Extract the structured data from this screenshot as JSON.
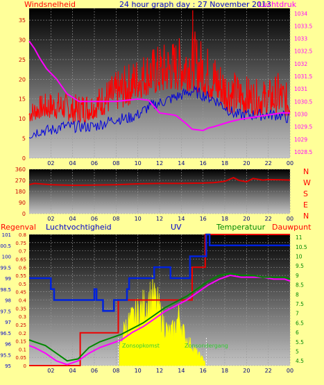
{
  "header": {
    "left_label": "Windsnelheid",
    "center_title": "24 hour graph day : 27 November 2013",
    "right_label": "Luchtdruk"
  },
  "direction_letters": [
    "N",
    "W",
    "S",
    "E",
    "N"
  ],
  "bottom_header": {
    "rain": "Regenval",
    "humidity": "Luchtvochtigheid",
    "uv": "UV",
    "temperature": "Temperatuur",
    "dewpoint": "Dauwpunt"
  },
  "annotations": {
    "sunrise": "Zonsopkomst",
    "sunset": "Zonsondergang"
  },
  "colors": {
    "background": "#ffff99",
    "wind_gust": "#ff0000",
    "wind_avg": "#0000dd",
    "pressure": "#ff00ff",
    "direction": "#dd0000",
    "rain": "#ee0000",
    "humidity": "#0022dd",
    "uv": "#ffff00",
    "temperature": "#008800",
    "dewpoint": "#ff00ff"
  },
  "chart_data": [
    {
      "type": "line",
      "title": "24 hour graph day : 27 November 2013",
      "x_ticks": [
        "02",
        "04",
        "06",
        "08",
        "10",
        "12",
        "14",
        "16",
        "18",
        "20",
        "22",
        "00"
      ],
      "y_left": {
        "label": "Windsnelheid",
        "ticks": [
          0,
          5,
          10,
          15,
          20,
          25,
          30,
          35
        ],
        "range": [
          0,
          38
        ]
      },
      "y_right": {
        "label": "Luchtdruk",
        "ticks": [
          1028.5,
          1029,
          1029.5,
          1030,
          1030.5,
          1031,
          1031.5,
          1032,
          1032.5,
          1033,
          1033.5,
          1034
        ],
        "range": [
          1028.25,
          1034.2
        ]
      },
      "series": [
        {
          "name": "Windsnelheid",
          "x": [
            0,
            1,
            2,
            3,
            4,
            5,
            6,
            7,
            8,
            9,
            10,
            11,
            12,
            13,
            14,
            15,
            16,
            17,
            18,
            19,
            20,
            21,
            22,
            23,
            24
          ],
          "gust_range": [
            [
              9,
              14
            ],
            [
              10,
              16
            ],
            [
              10,
              17
            ],
            [
              10,
              17
            ],
            [
              9,
              16
            ],
            [
              9,
              17
            ],
            [
              10,
              17
            ],
            [
              11,
              20
            ],
            [
              12,
              22
            ],
            [
              13,
              24
            ],
            [
              15,
              26
            ],
            [
              16,
              28
            ],
            [
              16,
              29
            ],
            [
              17,
              30
            ],
            [
              17,
              31
            ],
            [
              17,
              33
            ],
            [
              16,
              30
            ],
            [
              14,
              27
            ],
            [
              12,
              24
            ],
            [
              11,
              22
            ],
            [
              11,
              21
            ],
            [
              11,
              20
            ],
            [
              11,
              20
            ],
            [
              11,
              22
            ],
            [
              10,
              18
            ]
          ],
          "average": [
            6,
            7,
            7,
            8,
            8,
            8,
            8,
            9,
            10,
            10,
            11,
            13,
            14,
            15,
            16,
            17,
            16,
            15,
            13,
            11,
            11,
            11,
            11,
            11,
            10
          ]
        },
        {
          "name": "Luchtdruk",
          "x": [
            0,
            0.5,
            1,
            1.6,
            2.5,
            3.5,
            4.6,
            6,
            8,
            10,
            11,
            11.5,
            12,
            13.5,
            14.5,
            15,
            16,
            16.5,
            17,
            18.5,
            19.5,
            21,
            22.5,
            23.2,
            24
          ],
          "values": [
            1032.9,
            1032.6,
            1032.2,
            1031.8,
            1031.4,
            1030.8,
            1030.5,
            1030.5,
            1030.5,
            1030.6,
            1030.55,
            1030.3,
            1030.05,
            1029.95,
            1029.6,
            1029.4,
            1029.35,
            1029.45,
            1029.5,
            1029.7,
            1029.8,
            1029.9,
            1030.0,
            1030.05,
            1030.05
          ]
        }
      ]
    },
    {
      "type": "line",
      "title": "",
      "x_ticks": [
        "02",
        "04",
        "06",
        "08",
        "10",
        "12",
        "14",
        "16",
        "18",
        "20",
        "22",
        "00"
      ],
      "y_left": {
        "label": "",
        "ticks": [
          0,
          90,
          180,
          270,
          360
        ],
        "range": [
          0,
          360
        ]
      },
      "right_labels": [
        "N",
        "W",
        "S",
        "E",
        "N"
      ],
      "series": [
        {
          "name": "",
          "x": [
            0,
            0.5,
            2,
            4,
            6,
            8,
            10,
            12,
            14,
            16,
            17,
            18,
            18.8,
            19.3,
            20,
            20.6,
            21.5,
            22,
            23,
            24
          ],
          "values": [
            235,
            245,
            235,
            230,
            232,
            235,
            242,
            245,
            245,
            248,
            252,
            262,
            292,
            270,
            258,
            285,
            272,
            276,
            275,
            272
          ]
        }
      ]
    },
    {
      "type": "line",
      "title": "",
      "x_ticks": [
        "02",
        "04",
        "06",
        "08",
        "10",
        "12",
        "14",
        "16",
        "18",
        "20",
        "22",
        "00"
      ],
      "y_left_rain": {
        "label": "Regenval",
        "ticks": [
          0,
          0.05,
          0.1,
          0.15,
          0.2,
          0.25,
          0.3,
          0.35,
          0.4,
          0.45,
          0.5,
          0.55,
          0.6,
          0.65,
          0.7,
          0.75,
          0.8
        ],
        "range": [
          0,
          0.8
        ]
      },
      "y_left_humidity": {
        "label": "Luchtvochtigheid",
        "ticks": [
          95,
          95.5,
          96,
          96.5,
          97,
          97.5,
          98,
          98.5,
          99,
          99.5,
          100,
          100.5,
          101
        ],
        "range": [
          95,
          101
        ]
      },
      "y_right_temp": {
        "label": "Temperatuur",
        "ticks": [
          4.5,
          5,
          5.5,
          6,
          6.5,
          7,
          7.5,
          8,
          8.5,
          9,
          9.5,
          10,
          10.5,
          11
        ],
        "range": [
          4.25,
          11.15
        ]
      },
      "series": [
        {
          "name": "Regenval",
          "step_points": [
            [
              0,
              0
            ],
            [
              4.7,
              0
            ],
            [
              4.7,
              0.2
            ],
            [
              8.2,
              0.2
            ],
            [
              8.2,
              0.4
            ],
            [
              15.0,
              0.4
            ],
            [
              15.0,
              0.6
            ],
            [
              16.2,
              0.6
            ],
            [
              16.2,
              0.8
            ],
            [
              24,
              0.8
            ]
          ]
        },
        {
          "name": "Luchtvochtigheid",
          "step_points": [
            [
              0,
              99
            ],
            [
              2,
              99
            ],
            [
              2,
              98.5
            ],
            [
              2.3,
              98.5
            ],
            [
              2.3,
              98
            ],
            [
              6,
              98
            ],
            [
              6,
              98.5
            ],
            [
              6.2,
              98.5
            ],
            [
              6.2,
              98
            ],
            [
              6.8,
              98
            ],
            [
              6.8,
              97.5
            ],
            [
              7.8,
              97.5
            ],
            [
              7.8,
              98
            ],
            [
              9,
              98
            ],
            [
              9,
              98.5
            ],
            [
              9.2,
              98.5
            ],
            [
              9.2,
              99
            ],
            [
              11.5,
              99
            ],
            [
              11.5,
              99.5
            ],
            [
              13,
              99.5
            ],
            [
              13,
              99
            ],
            [
              14.8,
              99
            ],
            [
              14.8,
              100
            ],
            [
              16.3,
              100
            ],
            [
              16.3,
              101
            ],
            [
              16.6,
              101
            ],
            [
              16.6,
              100.5
            ],
            [
              24,
              100.5
            ]
          ]
        },
        {
          "name": "UV",
          "x": [
            8.3,
            8.8,
            9.3,
            9.8,
            10.3,
            10.8,
            11.3,
            11.8,
            12.3,
            12.8,
            13.3,
            13.8,
            14.3,
            14.8,
            15.3,
            15.8,
            16.2
          ],
          "values": [
            0.12,
            0.26,
            0.3,
            0.34,
            0.38,
            0.42,
            0.47,
            0.41,
            0.3,
            0.22,
            0.24,
            0.34,
            0.2,
            0.15,
            0.1,
            0.06,
            0.03
          ]
        },
        {
          "name": "Temperatuur",
          "x": [
            0,
            0.5,
            1.5,
            2.5,
            3.5,
            4.5,
            5.5,
            6.5,
            7.5,
            8.5,
            9.5,
            10.5,
            11.5,
            12.5,
            13.5,
            14.5,
            15.5,
            16.5,
            17.5,
            18.5,
            19.5,
            20.5,
            21.5,
            22.5,
            23.5,
            24
          ],
          "values": [
            5.6,
            5.5,
            5.3,
            4.9,
            4.5,
            4.6,
            5.2,
            5.5,
            5.7,
            5.9,
            6.2,
            6.5,
            6.9,
            7.3,
            7.6,
            7.9,
            8.3,
            8.7,
            9.0,
            9.1,
            9.0,
            9.0,
            8.9,
            8.9,
            8.9,
            8.8
          ]
        },
        {
          "name": "Dauwpunt",
          "x": [
            0,
            0.5,
            1.5,
            2.5,
            3.5,
            4.5,
            5.5,
            6.5,
            7.5,
            8.5,
            9.5,
            10.5,
            11.5,
            12.5,
            13.5,
            14.5,
            15.5,
            16.5,
            17.5,
            18.5,
            19.5,
            20.5,
            21.5,
            22.5,
            23.5,
            24
          ],
          "values": [
            5.3,
            5.2,
            4.9,
            4.5,
            4.3,
            4.5,
            4.9,
            5.2,
            5.4,
            5.6,
            6.0,
            6.3,
            6.7,
            7.1,
            7.4,
            7.7,
            8.1,
            8.5,
            8.8,
            9.0,
            8.9,
            8.9,
            8.9,
            8.8,
            8.8,
            8.7
          ]
        }
      ]
    }
  ]
}
